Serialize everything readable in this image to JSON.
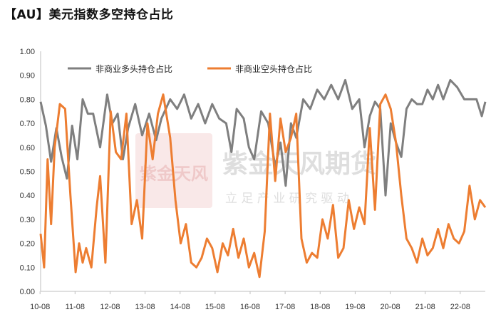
{
  "title": "【AU】美元指数多空持仓占比",
  "watermark": {
    "brand": "紫金天风期货",
    "slogan": "立 足 产 业   研 究 驱 动",
    "seal": "紫金天风"
  },
  "colors": {
    "long": "#7f7f7f",
    "short": "#ed7d31",
    "watermark": "#d9d9d9",
    "seal": "#f3d3d3"
  },
  "chart_data": {
    "type": "line",
    "title": "【AU】美元指数多空持仓占比",
    "xlabel": "",
    "ylabel": "",
    "ylim": [
      0,
      1
    ],
    "y_ticks": [
      "0.00",
      "0.10",
      "0.20",
      "0.30",
      "0.40",
      "0.50",
      "0.60",
      "0.70",
      "0.80",
      "0.90",
      "1.00"
    ],
    "x_ticks": [
      "10-08",
      "11-08",
      "12-08",
      "13-08",
      "14-08",
      "15-08",
      "16-08",
      "17-08",
      "18-08",
      "19-08",
      "20-08",
      "21-08",
      "22-08"
    ],
    "xlim": [
      2010.6,
      2023.3
    ],
    "grid": false,
    "legend": "top-left",
    "series": [
      {
        "name": "非商业多头持仓占比",
        "color": "#7f7f7f",
        "x": [
          2010.6,
          2010.75,
          2010.9,
          2011.05,
          2011.2,
          2011.35,
          2011.5,
          2011.65,
          2011.8,
          2011.95,
          2012.1,
          2012.3,
          2012.5,
          2012.65,
          2012.8,
          2012.95,
          2013.1,
          2013.3,
          2013.5,
          2013.7,
          2013.9,
          2014.05,
          2014.3,
          2014.5,
          2014.7,
          2014.9,
          2015.1,
          2015.3,
          2015.5,
          2015.7,
          2015.9,
          2016.05,
          2016.2,
          2016.4,
          2016.55,
          2016.7,
          2016.9,
          2017.1,
          2017.3,
          2017.45,
          2017.6,
          2017.75,
          2017.9,
          2018.1,
          2018.3,
          2018.5,
          2018.7,
          2018.9,
          2019.1,
          2019.3,
          2019.5,
          2019.7,
          2019.85,
          2020.0,
          2020.15,
          2020.3,
          2020.45,
          2020.6,
          2020.75,
          2020.9,
          2021.05,
          2021.2,
          2021.35,
          2021.5,
          2021.65,
          2021.8,
          2021.95,
          2022.1,
          2022.3,
          2022.5,
          2022.7,
          2022.9,
          2023.05,
          2023.2,
          2023.3
        ],
        "values": [
          0.79,
          0.69,
          0.54,
          0.68,
          0.56,
          0.47,
          0.69,
          0.55,
          0.8,
          0.74,
          0.74,
          0.6,
          0.82,
          0.7,
          0.74,
          0.55,
          0.68,
          0.78,
          0.65,
          0.74,
          0.63,
          0.72,
          0.8,
          0.76,
          0.82,
          0.72,
          0.78,
          0.7,
          0.78,
          0.72,
          0.7,
          0.58,
          0.76,
          0.72,
          0.6,
          0.55,
          0.75,
          0.7,
          0.52,
          0.62,
          0.44,
          0.7,
          0.64,
          0.8,
          0.76,
          0.84,
          0.8,
          0.86,
          0.8,
          0.88,
          0.76,
          0.8,
          0.6,
          0.73,
          0.79,
          0.76,
          0.4,
          0.7,
          0.62,
          0.56,
          0.76,
          0.8,
          0.78,
          0.78,
          0.84,
          0.8,
          0.86,
          0.8,
          0.88,
          0.85,
          0.8,
          0.8,
          0.8,
          0.73,
          0.79
        ]
      },
      {
        "name": "非商业空头持仓占比",
        "color": "#ed7d31",
        "x": [
          2010.6,
          2010.7,
          2010.8,
          2010.9,
          2011.0,
          2011.15,
          2011.3,
          2011.45,
          2011.6,
          2011.7,
          2011.8,
          2011.9,
          2012.05,
          2012.2,
          2012.3,
          2012.45,
          2012.6,
          2012.75,
          2012.9,
          2013.05,
          2013.2,
          2013.35,
          2013.5,
          2013.65,
          2013.8,
          2013.95,
          2014.1,
          2014.3,
          2014.45,
          2014.6,
          2014.75,
          2014.9,
          2015.05,
          2015.2,
          2015.35,
          2015.5,
          2015.65,
          2015.8,
          2015.95,
          2016.1,
          2016.25,
          2016.4,
          2016.55,
          2016.7,
          2016.85,
          2017.0,
          2017.15,
          2017.3,
          2017.45,
          2017.6,
          2017.75,
          2017.9,
          2018.05,
          2018.2,
          2018.35,
          2018.5,
          2018.65,
          2018.8,
          2018.95,
          2019.1,
          2019.25,
          2019.4,
          2019.55,
          2019.7,
          2019.85,
          2020.0,
          2020.15,
          2020.3,
          2020.45,
          2020.6,
          2020.75,
          2020.9,
          2021.05,
          2021.2,
          2021.35,
          2021.5,
          2021.65,
          2021.8,
          2021.95,
          2022.1,
          2022.25,
          2022.4,
          2022.55,
          2022.7,
          2022.85,
          2023.0,
          2023.15,
          2023.3
        ],
        "values": [
          0.24,
          0.1,
          0.55,
          0.28,
          0.6,
          0.78,
          0.76,
          0.4,
          0.08,
          0.2,
          0.12,
          0.18,
          0.1,
          0.35,
          0.48,
          0.12,
          0.75,
          0.58,
          0.55,
          0.74,
          0.28,
          0.38,
          0.22,
          0.7,
          0.55,
          0.74,
          0.82,
          0.64,
          0.38,
          0.2,
          0.28,
          0.12,
          0.1,
          0.14,
          0.22,
          0.18,
          0.08,
          0.2,
          0.15,
          0.26,
          0.14,
          0.22,
          0.1,
          0.16,
          0.06,
          0.25,
          0.74,
          0.46,
          0.72,
          0.58,
          0.64,
          0.74,
          0.22,
          0.12,
          0.16,
          0.14,
          0.3,
          0.22,
          0.36,
          0.14,
          0.18,
          0.38,
          0.26,
          0.35,
          0.28,
          0.68,
          0.34,
          0.78,
          0.82,
          0.76,
          0.62,
          0.4,
          0.22,
          0.18,
          0.12,
          0.22,
          0.15,
          0.18,
          0.26,
          0.18,
          0.28,
          0.22,
          0.2,
          0.25,
          0.44,
          0.3,
          0.38,
          0.35
        ]
      }
    ]
  }
}
